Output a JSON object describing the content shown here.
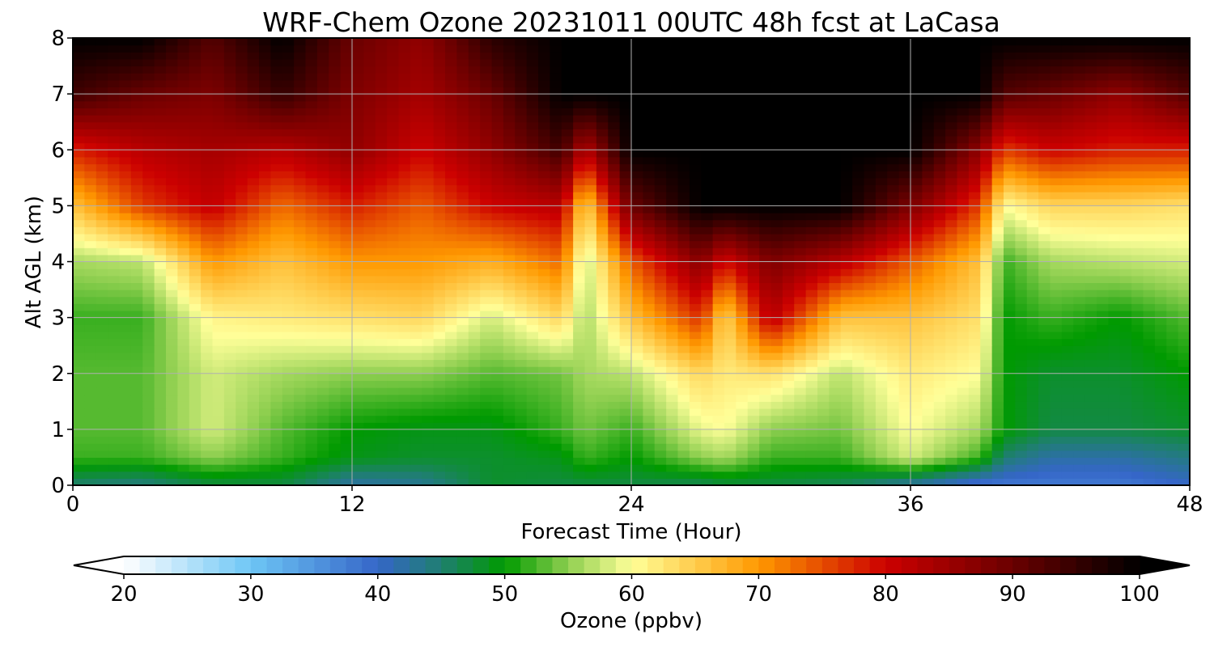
{
  "chart_data": {
    "type": "heatmap",
    "title": "WRF-Chem Ozone  20231011 00UTC 48h fcst at LaCasa",
    "xlabel": "Forecast Time (Hour)",
    "ylabel": "Alt AGL (km)",
    "xlim": [
      0,
      48
    ],
    "ylim": [
      0,
      8
    ],
    "x_ticks": [
      0,
      12,
      24,
      36,
      48
    ],
    "y_ticks": [
      0,
      1,
      2,
      3,
      4,
      5,
      6,
      7,
      8
    ],
    "grid": true,
    "colorbar": {
      "label": "Ozone  (ppbv)",
      "range": [
        20,
        100
      ],
      "ticks": [
        20,
        30,
        40,
        50,
        60,
        70,
        80,
        90,
        100
      ],
      "extend": "both",
      "colors": [
        {
          "v": 20,
          "c": "#ffffff"
        },
        {
          "v": 30,
          "c": "#6ec6f5"
        },
        {
          "v": 40,
          "c": "#3566c8"
        },
        {
          "v": 45,
          "c": "#1f7f70"
        },
        {
          "v": 50,
          "c": "#009a00"
        },
        {
          "v": 55,
          "c": "#8fcf50"
        },
        {
          "v": 60,
          "c": "#ffff99"
        },
        {
          "v": 70,
          "c": "#ff9900"
        },
        {
          "v": 80,
          "c": "#cc0000"
        },
        {
          "v": 90,
          "c": "#6a0000"
        },
        {
          "v": 100,
          "c": "#000000"
        }
      ]
    },
    "field": {
      "x": [
        0,
        3,
        6,
        9,
        12,
        15,
        18,
        21,
        22,
        24,
        27,
        28,
        30,
        33,
        36,
        39,
        40,
        42,
        45,
        48
      ],
      "z": [
        0,
        0.5,
        1,
        2,
        3,
        4,
        5,
        6,
        7,
        8
      ],
      "values": [
        [
          45,
          44,
          47,
          47,
          42,
          43,
          48,
          47,
          47,
          47,
          46,
          47,
          47,
          46,
          42,
          38,
          38,
          38,
          38,
          40
        ],
        [
          52,
          52,
          55,
          52,
          49,
          48,
          48,
          49,
          52,
          50,
          55,
          56,
          52,
          52,
          58,
          52,
          45,
          42,
          42,
          44
        ],
        [
          53,
          53,
          58,
          53,
          50,
          49,
          49,
          52,
          54,
          52,
          59,
          60,
          55,
          54,
          60,
          56,
          50,
          47,
          47,
          48
        ],
        [
          53,
          53,
          58,
          56,
          55,
          55,
          53,
          54,
          56,
          57,
          64,
          62,
          63,
          57,
          62,
          60,
          50,
          48,
          48,
          50
        ],
        [
          52,
          52,
          61,
          62,
          63,
          64,
          58,
          64,
          56,
          66,
          77,
          64,
          82,
          66,
          66,
          63,
          50,
          52,
          50,
          53
        ],
        [
          56,
          57,
          70,
          66,
          70,
          70,
          68,
          73,
          57,
          74,
          87,
          79,
          88,
          82,
          74,
          66,
          52,
          56,
          57,
          58
        ],
        [
          66,
          76,
          81,
          73,
          78,
          74,
          80,
          82,
          64,
          90,
          100,
          100,
          100,
          100,
          88,
          76,
          60,
          64,
          64,
          63
        ],
        [
          78,
          82,
          84,
          82,
          86,
          80,
          86,
          94,
          82,
          100,
          100,
          100,
          100,
          100,
          100,
          86,
          76,
          80,
          78,
          78
        ],
        [
          94,
          90,
          88,
          95,
          88,
          84,
          90,
          100,
          100,
          100,
          100,
          100,
          100,
          100,
          100,
          100,
          92,
          90,
          86,
          92
        ],
        [
          100,
          100,
          92,
          100,
          90,
          86,
          96,
          100,
          100,
          100,
          100,
          100,
          100,
          100,
          100,
          100,
          100,
          100,
          100,
          100
        ]
      ]
    }
  }
}
